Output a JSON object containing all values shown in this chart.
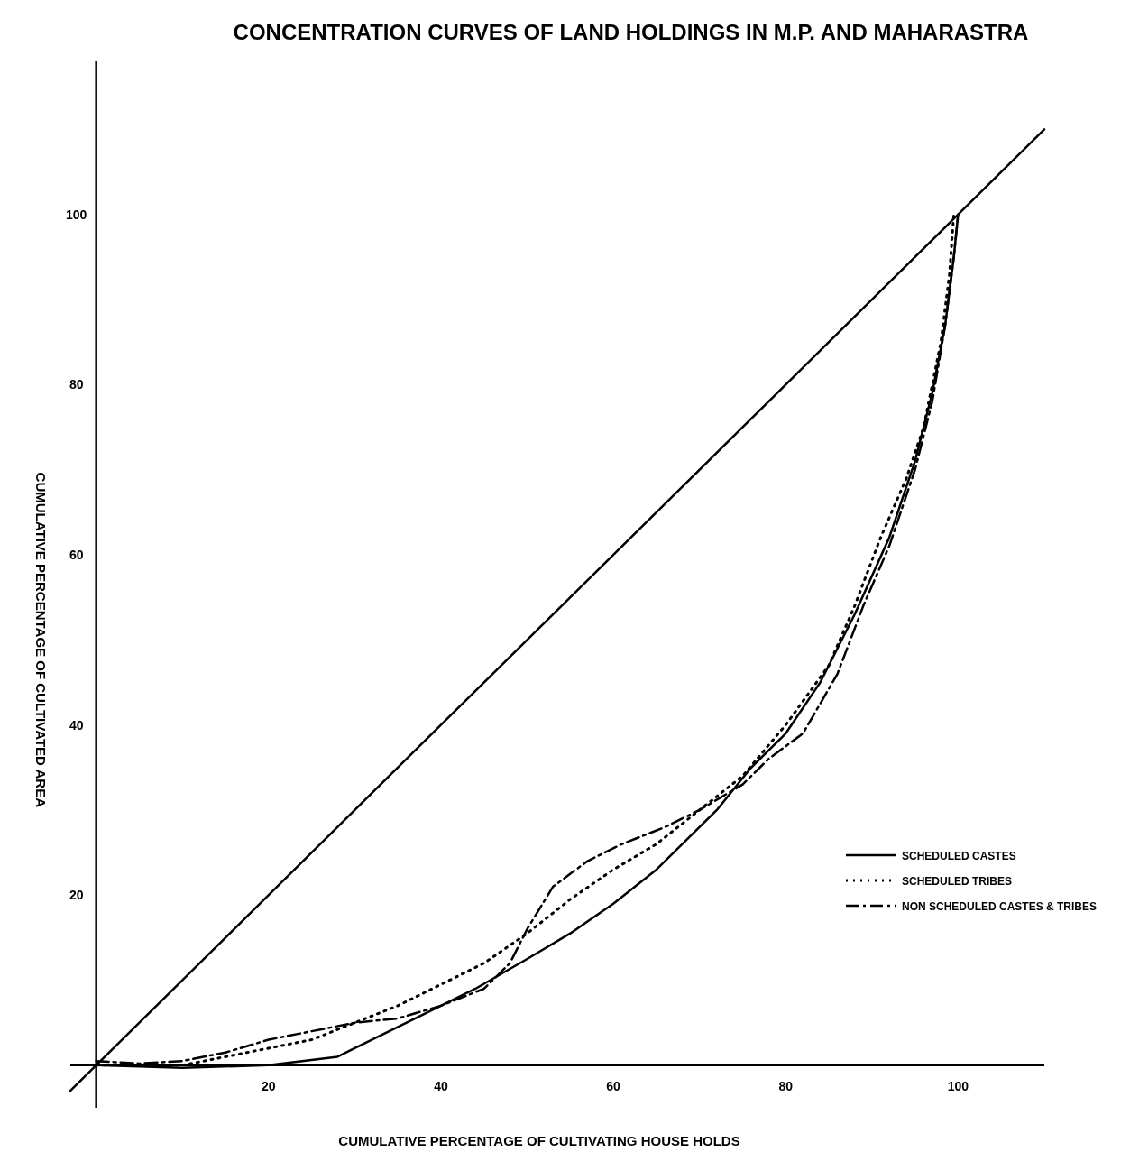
{
  "chart_data": {
    "type": "line",
    "title": "CONCENTRATION CURVES OF LAND HOLDINGS IN M.P. AND MAHARASTRA",
    "xlabel": "CUMULATIVE PERCENTAGE OF CULTIVATING HOUSE HOLDS",
    "ylabel": "CUMULATIVE PERCENTAGE OF CULTIVATED AREA",
    "xlim": [
      -3,
      110
    ],
    "ylim": [
      -5,
      118
    ],
    "xticks": [
      20,
      40,
      60,
      80,
      100
    ],
    "yticks": [
      20,
      40,
      60,
      80,
      100
    ],
    "grid": false,
    "legend": "right",
    "marker": "none",
    "series": [
      {
        "name": "SCHEDULED CASTES",
        "color": "#000000",
        "line_style": "solid",
        "x": [
          0,
          10,
          20,
          28,
          30,
          35,
          40,
          44,
          50,
          55,
          60,
          65,
          68,
          72,
          76,
          80,
          84,
          88,
          92,
          95,
          97,
          98.5,
          99.5,
          100
        ],
        "values": [
          0,
          -0.3,
          0,
          1,
          2,
          4.5,
          7,
          9,
          12.5,
          15.5,
          19,
          23,
          26,
          30,
          35,
          39,
          45,
          53,
          62,
          71,
          79,
          87,
          95,
          100
        ]
      },
      {
        "name": "SCHEDULED TRIBES",
        "color": "#000000",
        "line_style": "dotted",
        "x": [
          0,
          10,
          15,
          20,
          25,
          30,
          35,
          40,
          45,
          50,
          55,
          60,
          65,
          70,
          75,
          80,
          85,
          88,
          91,
          94,
          96,
          98,
          99,
          99.5
        ],
        "values": [
          0,
          0,
          1,
          2,
          3,
          5,
          7,
          9.5,
          12,
          15.5,
          19.5,
          23,
          26,
          30,
          34,
          40,
          47,
          54,
          62,
          69,
          75,
          85,
          93,
          100
        ]
      },
      {
        "name": "NON SCHEDULED CASTES & TRIBES",
        "color": "#000000",
        "line_style": "dashdot",
        "x": [
          0,
          5,
          10,
          15,
          20,
          25,
          30,
          35,
          40,
          45,
          48,
          50,
          53,
          57,
          61,
          66,
          70,
          75,
          78,
          82,
          86,
          89,
          92,
          95,
          97,
          98.5,
          99.5,
          100
        ],
        "values": [
          0.5,
          0.2,
          0.5,
          1.5,
          3,
          4,
          5,
          5.5,
          7,
          9,
          12,
          16,
          21,
          24,
          26,
          28,
          30,
          33,
          36,
          39,
          46,
          54,
          61,
          70,
          78,
          87,
          95,
          100
        ]
      },
      {
        "color": "#000000",
        "line_style": "solid",
        "x": [
          -3,
          110
        ],
        "values": [
          -3,
          110
        ]
      }
    ]
  }
}
